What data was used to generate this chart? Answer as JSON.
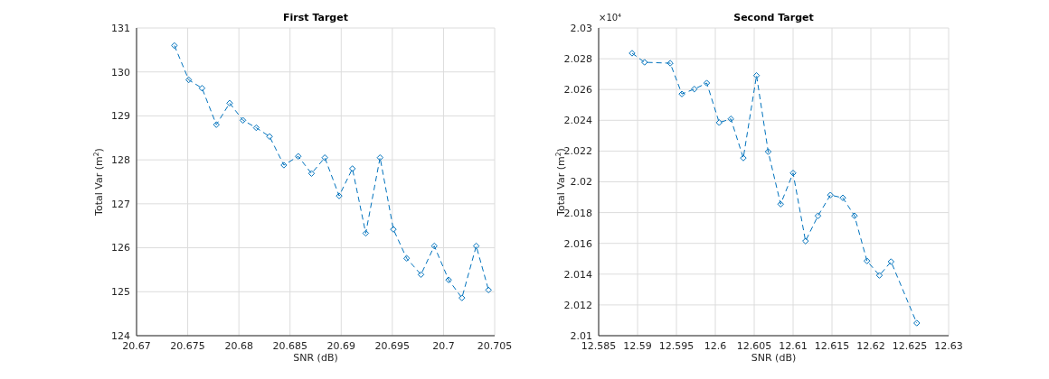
{
  "chart_data": [
    {
      "type": "line",
      "title": "First Target",
      "xlabel": "SNR (dB)",
      "ylabel": "Total Var (m$^{2}$)",
      "color": "#0072bd",
      "marker": "diamond",
      "line_style": "dashed",
      "grid": true,
      "x": [
        20.6737,
        20.6751,
        20.6764,
        20.6778,
        20.6791,
        20.6804,
        20.6817,
        20.683,
        20.6844,
        20.6858,
        20.6871,
        20.6884,
        20.6898,
        20.6911,
        20.6924,
        20.6938,
        20.6951,
        20.6964,
        20.6978,
        20.6991,
        20.7005,
        20.7018,
        20.7032,
        20.7044
      ],
      "values": [
        130.6,
        129.82,
        129.63,
        128.8,
        129.29,
        128.9,
        128.73,
        128.53,
        127.88,
        128.08,
        127.69,
        128.05,
        127.18,
        127.8,
        126.33,
        128.05,
        126.42,
        125.76,
        125.39,
        126.04,
        125.27,
        124.86,
        126.04,
        125.04
      ],
      "xlim": [
        20.67,
        20.705
      ],
      "xticks": [
        20.67,
        20.675,
        20.68,
        20.685,
        20.69,
        20.695,
        20.7,
        20.705
      ],
      "ylim": [
        124,
        131
      ],
      "yticks": [
        124,
        125,
        126,
        127,
        128,
        129,
        130,
        131
      ]
    },
    {
      "type": "line",
      "title": "Second Target",
      "xlabel": "SNR (dB)",
      "ylabel": "Total Var (m$^{2}$)",
      "color": "#0072bd",
      "marker": "diamond",
      "line_style": "dashed",
      "grid": true,
      "annotations": [
        "×10⁴"
      ],
      "x": [
        12.5893,
        12.5909,
        12.5942,
        12.5957,
        12.5973,
        12.5989,
        12.6005,
        12.602,
        12.6036,
        12.6053,
        12.6068,
        12.6084,
        12.61,
        12.6116,
        12.6132,
        12.6148,
        12.6164,
        12.6179,
        12.6195,
        12.6211,
        12.6226,
        12.6259
      ],
      "values": [
        2.02836,
        2.02777,
        2.02771,
        2.02571,
        2.02603,
        2.02642,
        2.02385,
        2.02409,
        2.02155,
        2.02691,
        2.02196,
        2.01855,
        2.02057,
        2.01615,
        2.01779,
        2.01914,
        2.01896,
        2.01779,
        2.01486,
        2.01392,
        2.01481,
        2.01082
      ],
      "xlim": [
        12.585,
        12.63
      ],
      "xticks": [
        12.585,
        12.59,
        12.595,
        12.6,
        12.605,
        12.61,
        12.615,
        12.62,
        12.625,
        12.63
      ],
      "ylim": [
        2.01,
        2.03
      ],
      "yticks": [
        2.01,
        2.012,
        2.014,
        2.016,
        2.018,
        2.02,
        2.022,
        2.024,
        2.026,
        2.028,
        2.03
      ]
    }
  ]
}
